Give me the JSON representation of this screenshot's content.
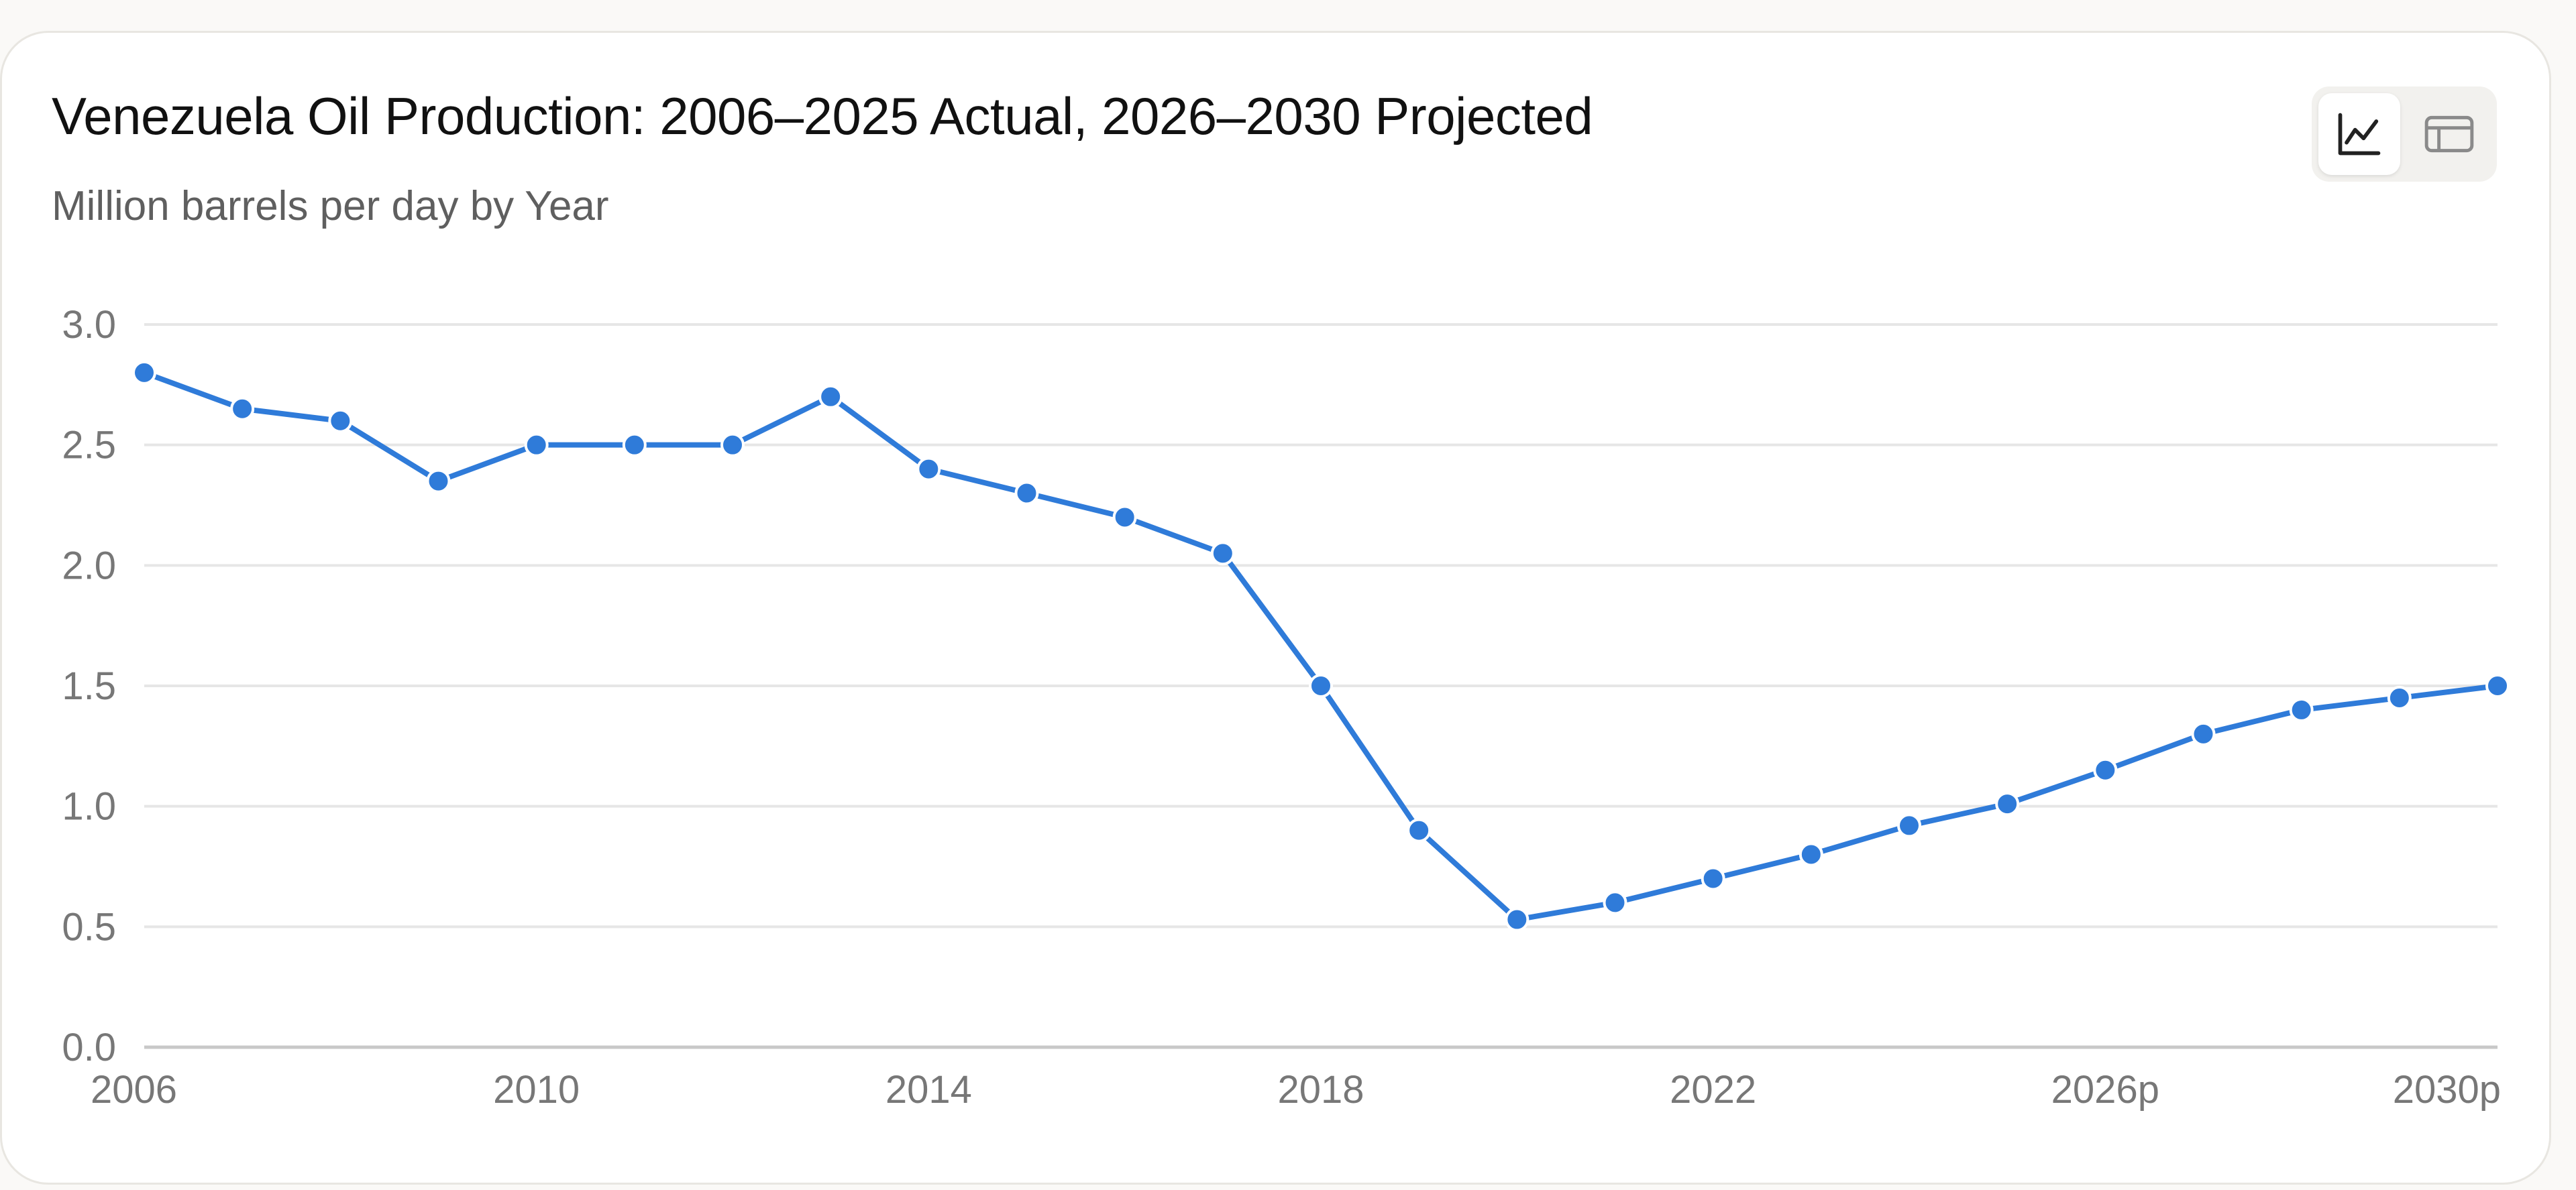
{
  "title": "Venezuela Oil Production: 2006–2025 Actual, 2026–2030 Projected",
  "subtitle": "Million barrels per day by Year",
  "view_toggle": {
    "selected": "chart",
    "options": [
      {
        "name": "line-chart-icon"
      },
      {
        "name": "table-icon"
      }
    ]
  },
  "colors": {
    "series": "#2f7bd9",
    "grid": "#e6e6e6",
    "axis": "#c8c8c8"
  },
  "chart_data": {
    "type": "line",
    "title": "Venezuela Oil Production: 2006–2025 Actual, 2026–2030 Projected",
    "subtitle": "Million barrels per day by Year",
    "xlabel": "",
    "ylabel": "",
    "x": [
      2006,
      2007,
      2008,
      2009,
      2010,
      2011,
      2012,
      2013,
      2014,
      2015,
      2016,
      2017,
      2018,
      2019,
      2020,
      2021,
      2022,
      2023,
      2024,
      2025,
      2026,
      2027,
      2028,
      2029,
      2030
    ],
    "xlim": [
      2006,
      2030
    ],
    "x_ticks": [
      {
        "value": 2006,
        "label": "2006"
      },
      {
        "value": 2010,
        "label": "2010"
      },
      {
        "value": 2014,
        "label": "2014"
      },
      {
        "value": 2018,
        "label": "2018"
      },
      {
        "value": 2022,
        "label": "2022"
      },
      {
        "value": 2026,
        "label": "2026p"
      },
      {
        "value": 2030,
        "label": "2030p"
      }
    ],
    "ylim": [
      0,
      3.0
    ],
    "y_ticks": [
      {
        "value": 0.0,
        "label": "0.0"
      },
      {
        "value": 0.5,
        "label": "0.5"
      },
      {
        "value": 1.0,
        "label": "1.0"
      },
      {
        "value": 1.5,
        "label": "1.5"
      },
      {
        "value": 2.0,
        "label": "2.0"
      },
      {
        "value": 2.5,
        "label": "2.5"
      },
      {
        "value": 3.0,
        "label": "3.0"
      }
    ],
    "grid": true,
    "legend": "none",
    "series": [
      {
        "values": [
          2.8,
          2.65,
          2.6,
          2.35,
          2.5,
          2.5,
          2.5,
          2.7,
          2.4,
          2.3,
          2.2,
          2.05,
          1.5,
          0.9,
          0.53,
          0.6,
          0.7,
          0.8,
          0.92,
          1.01,
          1.15,
          1.3,
          1.4,
          1.45,
          1.5
        ]
      }
    ]
  }
}
